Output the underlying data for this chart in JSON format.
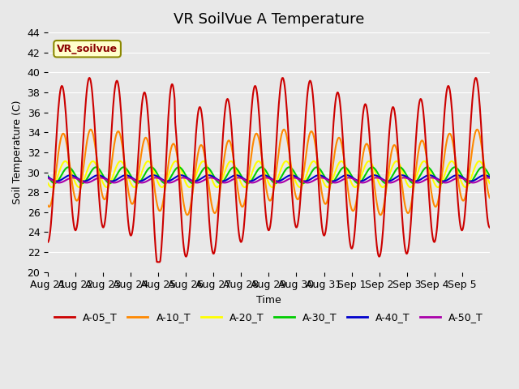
{
  "title": "VR SoilVue A Temperature",
  "ylabel": "Soil Temperature (C)",
  "xlabel": "Time",
  "ylim": [
    20,
    44
  ],
  "yticks": [
    20,
    22,
    24,
    26,
    28,
    30,
    32,
    34,
    36,
    38,
    40,
    42,
    44
  ],
  "x_labels": [
    "Aug 21",
    "Aug 22",
    "Aug 23",
    "Aug 24",
    "Aug 25",
    "Aug 26",
    "Aug 27",
    "Aug 28",
    "Aug 29",
    "Aug 30",
    "Aug 31",
    "Sep 1",
    "Sep 2",
    "Sep 3",
    "Sep 4",
    "Sep 5"
  ],
  "series_colors": {
    "A-05_T": "#cc0000",
    "A-10_T": "#ff8800",
    "A-20_T": "#ffff00",
    "A-30_T": "#00cc00",
    "A-40_T": "#0000cc",
    "A-50_T": "#aa00aa"
  },
  "legend_label": "VR_soilvue",
  "plot_bg_color": "#e8e8e8",
  "grid_color": "#ffffff",
  "title_fontsize": 13,
  "axis_fontsize": 9,
  "legend_fontsize": 9,
  "line_width": 1.5
}
